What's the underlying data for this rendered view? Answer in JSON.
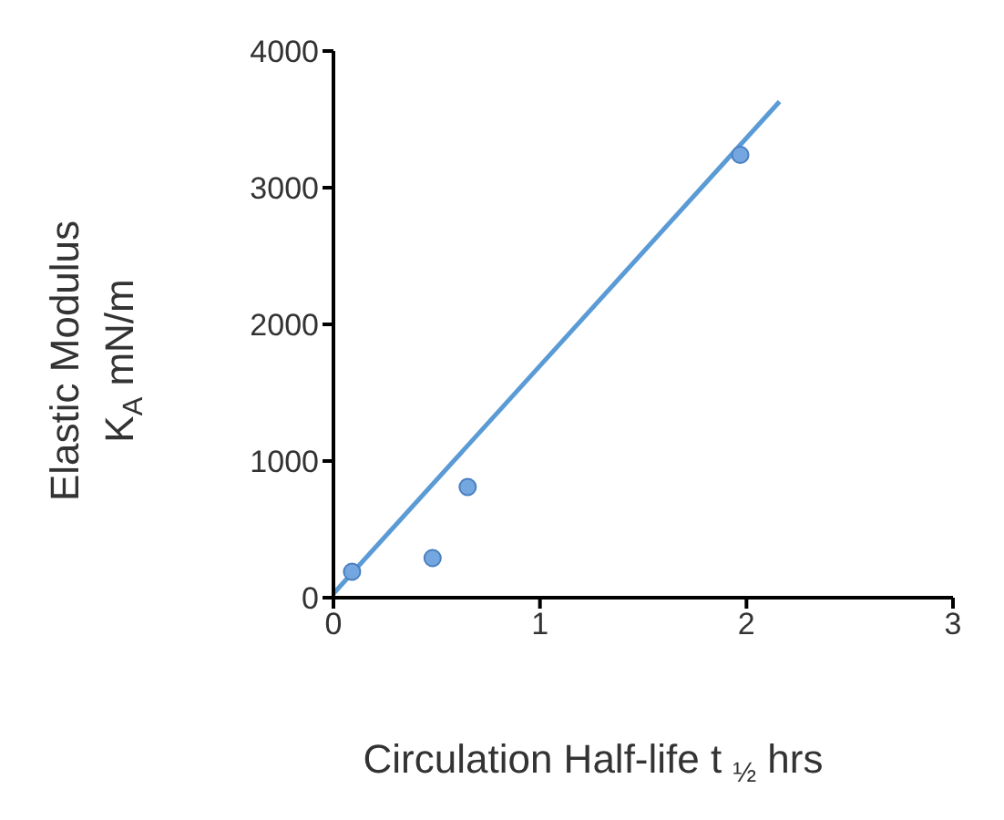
{
  "chart_data": {
    "type": "scatter",
    "xlabel": "Circulation Half-life t $_{½}$ hrs",
    "ylabel": "Elastic Modulus\nK$_{A}$ mN/m",
    "xlim": [
      0,
      3
    ],
    "xticks": [
      0,
      1,
      2,
      3
    ],
    "ylim": [
      0,
      4000
    ],
    "yticks": [
      0,
      1000,
      2000,
      3000,
      4000
    ],
    "marker": "circle",
    "series": [
      {
        "color": "#74a7e0",
        "x": [
          0.09,
          0.48,
          0.65,
          1.97
        ],
        "values": [
          190,
          290,
          810,
          3240
        ]
      },
      {
        "type": "line",
        "color": "#5b9bd5",
        "marker": "none",
        "line_style": "solid",
        "x": [
          0,
          2.16
        ],
        "values": [
          30,
          3630
        ]
      }
    ]
  }
}
